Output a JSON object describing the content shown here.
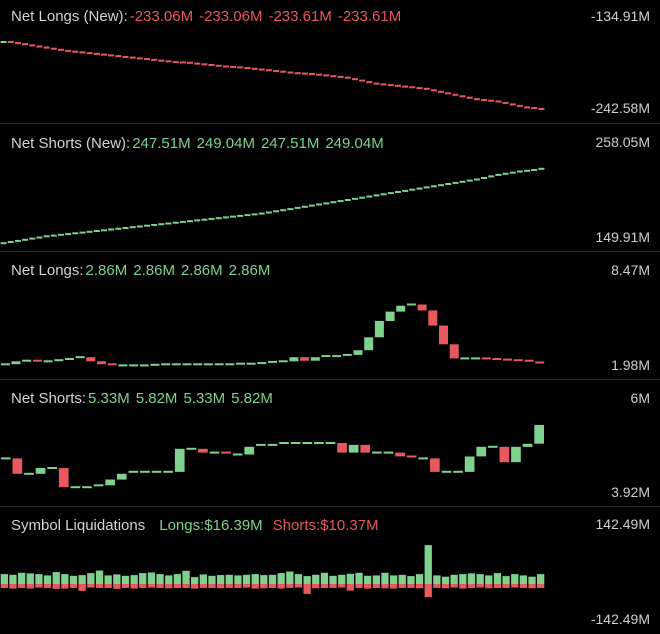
{
  "colors": {
    "up": "#7fd18d",
    "down": "#e8585e",
    "bg": "#000000",
    "grid": "#2a2a2a"
  },
  "chart_data": [
    {
      "type": "candlestick",
      "label": "Net Longs (New):",
      "values": [
        "-233.06M",
        "-233.06M",
        "-233.61M",
        "-233.61M"
      ],
      "value_colors": [
        "down",
        "down",
        "down",
        "down"
      ],
      "ymax": "-134.91M",
      "ymin": "-242.58M",
      "ylim": [
        -242.58,
        -134.91
      ],
      "series": [
        -143.0,
        -144.5,
        -146.0,
        -147.5,
        -149.0,
        -150.5,
        -152.0,
        -153.5,
        -155.0,
        -156.0,
        -157.0,
        -158.0,
        -159.0,
        -160.0,
        -161.0,
        -162.0,
        -163.0,
        -164.0,
        -165.0,
        -166.0,
        -167.0,
        -168.0,
        -169.0,
        -170.0,
        -170.5,
        -171.0,
        -172.0,
        -173.0,
        -174.0,
        -175.0,
        -176.0,
        -176.5,
        -177.0,
        -178.0,
        -179.0,
        -180.0,
        -181.0,
        -182.0,
        -183.0,
        -184.0,
        -185.0,
        -185.5,
        -186.0,
        -187.0,
        -188.0,
        -189.0,
        -190.0,
        -191.0,
        -193.0,
        -195.0,
        -197.0,
        -199.0,
        -200.0,
        -201.0,
        -202.0,
        -203.0,
        -204.0,
        -205.0,
        -206.0,
        -208.0,
        -210.0,
        -212.0,
        -214.0,
        -216.0,
        -218.0,
        -220.0,
        -221.0,
        -222.0,
        -223.0,
        -225.0,
        -227.0,
        -229.0,
        -231.0,
        -232.0,
        -233.06,
        -233.61
      ]
    },
    {
      "type": "candlestick",
      "label": "Net Shorts (New):",
      "values": [
        "247.51M",
        "249.04M",
        "247.51M",
        "249.04M"
      ],
      "value_colors": [
        "up",
        "up",
        "up",
        "up"
      ],
      "ymax": "258.05M",
      "ymin": "149.91M",
      "ylim": [
        149.91,
        258.05
      ],
      "series": [
        151.0,
        152.5,
        154.0,
        155.5,
        157.0,
        158.5,
        160.0,
        161.0,
        162.0,
        163.0,
        164.0,
        165.0,
        166.0,
        167.0,
        168.0,
        169.0,
        170.0,
        171.0,
        172.0,
        173.0,
        174.0,
        175.0,
        176.0,
        177.0,
        178.0,
        179.0,
        180.0,
        181.0,
        182.0,
        183.0,
        184.0,
        185.0,
        186.0,
        187.0,
        188.0,
        189.0,
        190.0,
        191.5,
        193.0,
        194.5,
        196.0,
        197.5,
        199.0,
        200.5,
        202.0,
        203.5,
        205.0,
        206.5,
        208.0,
        209.5,
        211.0,
        212.5,
        214.0,
        215.5,
        217.0,
        218.5,
        220.0,
        221.5,
        223.0,
        224.5,
        226.0,
        227.5,
        229.0,
        230.5,
        232.0,
        233.5,
        235.0,
        237.0,
        239.0,
        241.0,
        242.5,
        244.0,
        245.5,
        246.5,
        247.51,
        249.04
      ]
    },
    {
      "type": "candlestick",
      "label": "Net Longs:",
      "values": [
        "2.86M",
        "2.86M",
        "2.86M",
        "2.86M"
      ],
      "value_colors": [
        "up",
        "up",
        "up",
        "up"
      ],
      "ymax": "8.47M",
      "ymin": "1.98M",
      "ylim": [
        1.98,
        8.47
      ],
      "series": [
        2.3,
        2.55,
        2.6,
        2.55,
        2.55,
        2.65,
        2.75,
        2.9,
        2.55,
        2.3,
        2.15,
        2.2,
        2.2,
        2.2,
        2.25,
        2.3,
        2.3,
        2.3,
        2.3,
        2.3,
        2.3,
        2.3,
        2.35,
        2.35,
        2.4,
        2.5,
        2.55,
        2.9,
        2.6,
        2.9,
        3.0,
        3.0,
        3.1,
        3.5,
        4.6,
        6.0,
        6.8,
        7.3,
        7.4,
        6.9,
        5.6,
        4.0,
        2.8,
        2.8,
        2.8,
        2.75,
        2.7,
        2.65,
        2.6,
        2.45,
        2.3
      ]
    },
    {
      "type": "candlestick",
      "label": "Net Shorts:",
      "values": [
        "5.33M",
        "5.82M",
        "5.33M",
        "5.82M"
      ],
      "value_colors": [
        "up",
        "up",
        "up",
        "up"
      ],
      "ymax": "6M",
      "ymin": "3.92M",
      "ylim": [
        3.92,
        6.0
      ],
      "series": [
        4.95,
        4.55,
        4.55,
        4.7,
        4.7,
        4.2,
        4.2,
        4.2,
        4.25,
        4.4,
        4.55,
        4.6,
        4.6,
        4.6,
        4.6,
        5.2,
        5.2,
        5.1,
        5.1,
        5.05,
        5.05,
        5.25,
        5.3,
        5.3,
        5.35,
        5.35,
        5.35,
        5.35,
        5.35,
        5.1,
        5.3,
        5.1,
        5.1,
        5.1,
        5.0,
        4.95,
        4.95,
        4.6,
        4.6,
        4.6,
        5.0,
        5.25,
        5.25,
        4.85,
        5.25,
        5.33,
        5.82
      ]
    },
    {
      "type": "bar",
      "label": "Symbol Liquidations",
      "values": [
        "Longs:$16.39M",
        "Shorts:$10.37M"
      ],
      "value_colors": [
        "up",
        "down"
      ],
      "ymax": "142.49M",
      "ymin": "-142.49M",
      "ylim": [
        -142.49,
        142.49
      ],
      "series": [
        {
          "name": "Longs",
          "values": [
            30,
            28,
            34,
            32,
            30,
            26,
            36,
            30,
            25,
            27,
            33,
            41,
            26,
            29,
            25,
            27,
            33,
            35,
            30,
            26,
            30,
            40,
            21,
            29,
            25,
            27,
            28,
            26,
            28,
            30,
            27,
            28,
            33,
            38,
            30,
            24,
            28,
            34,
            25,
            28,
            31,
            34,
            25,
            26,
            34,
            26,
            28,
            24,
            30,
            118,
            26,
            22,
            28,
            30,
            32,
            30,
            26,
            33,
            24,
            30,
            26,
            22,
            30
          ]
        },
        {
          "name": "Shorts",
          "values": [
            -12,
            -14,
            -12,
            -14,
            -11,
            -12,
            -15,
            -14,
            -12,
            -21,
            -11,
            -12,
            -12,
            -15,
            -12,
            -14,
            -12,
            -11,
            -12,
            -13,
            -12,
            -12,
            -14,
            -12,
            -12,
            -13,
            -12,
            -12,
            -11,
            -14,
            -13,
            -12,
            -14,
            -12,
            -11,
            -30,
            -13,
            -12,
            -12,
            -11,
            -20,
            -12,
            -14,
            -12,
            -13,
            -14,
            -12,
            -12,
            -13,
            -40,
            -12,
            -13,
            -11,
            -14,
            -12,
            -11,
            -13,
            -12,
            -12,
            -11,
            -12,
            -13,
            -12
          ]
        }
      ]
    }
  ]
}
